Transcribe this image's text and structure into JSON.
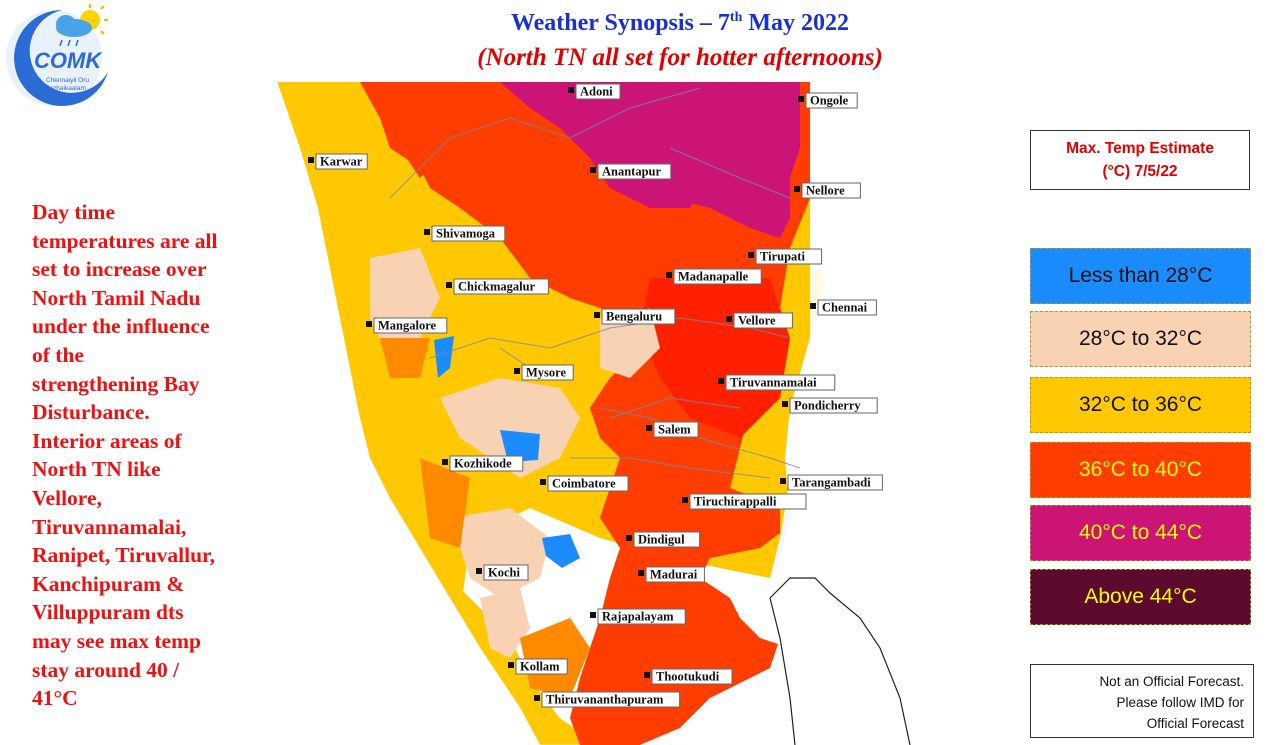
{
  "header": {
    "title_prefix": "Weather Synopsis – 7",
    "title_sup": "th",
    "title_suffix": " May 2022",
    "subtitle": "(North TN all set for hotter afternoons)"
  },
  "logo": {
    "text": "COMK",
    "tagline_line1": "Chennaiyil Oru",
    "tagline_line2": "Mazhaikaalam",
    "icon": "sun-cloud-icon"
  },
  "description_lines": [
    "Day time",
    "temperatures are all",
    "set to increase over",
    "North Tamil Nadu",
    "under the influence",
    "of the",
    "strengthening Bay",
    "Disturbance.",
    "Interior areas of",
    "North TN like",
    "Vellore,",
    "Tiruvannamalai,",
    "Ranipet, Tiruvallur,",
    "Kanchipuram &",
    "Villuppuram dts",
    "may see max temp",
    "stay around 40 /",
    "41°C"
  ],
  "legend": {
    "title_line1": "Max. Temp Estimate",
    "title_line2": "(°C) 7/5/22",
    "items": [
      {
        "label": "Less than 28°C",
        "color": "#1a8cff",
        "text_color": "#111111"
      },
      {
        "label": "28°C to 32°C",
        "color": "#f9d2b4",
        "text_color": "#111111"
      },
      {
        "label": "32°C to 36°C",
        "color": "#ffc800",
        "text_color": "#111111"
      },
      {
        "label": "36°C to 40°C",
        "color": "#ff3d00",
        "text_color": "#ffff00"
      },
      {
        "label": "40°C to 44°C",
        "color": "#cc1477",
        "text_color": "#ffff00"
      },
      {
        "label": "Above 44°C",
        "color": "#5c0a2e",
        "text_color": "#ffff00"
      }
    ]
  },
  "disclaimer": {
    "line1": "Not an Official Forecast.",
    "line2": "Please follow IMD for",
    "line3": "Official Forecast"
  },
  "cities": [
    "Adoni",
    "Ongole",
    "Karwar",
    "Anantapur",
    "Nellore",
    "Shivamoga",
    "Tirupati",
    "Madanapalle",
    "Chickmagalur",
    "Chennai",
    "Bengaluru",
    "Vellore",
    "Mangalore",
    "Mysore",
    "Tiruvannamalai",
    "Pondicherry",
    "Salem",
    "Kozhikode",
    "Tarangambadi",
    "Coimbatore",
    "Tiruchirappalli",
    "Dindigul",
    "Kochi",
    "Madurai",
    "Rajapalayam",
    "Kollam",
    "Thootukudi",
    "Thiruvananthapuram"
  ]
}
